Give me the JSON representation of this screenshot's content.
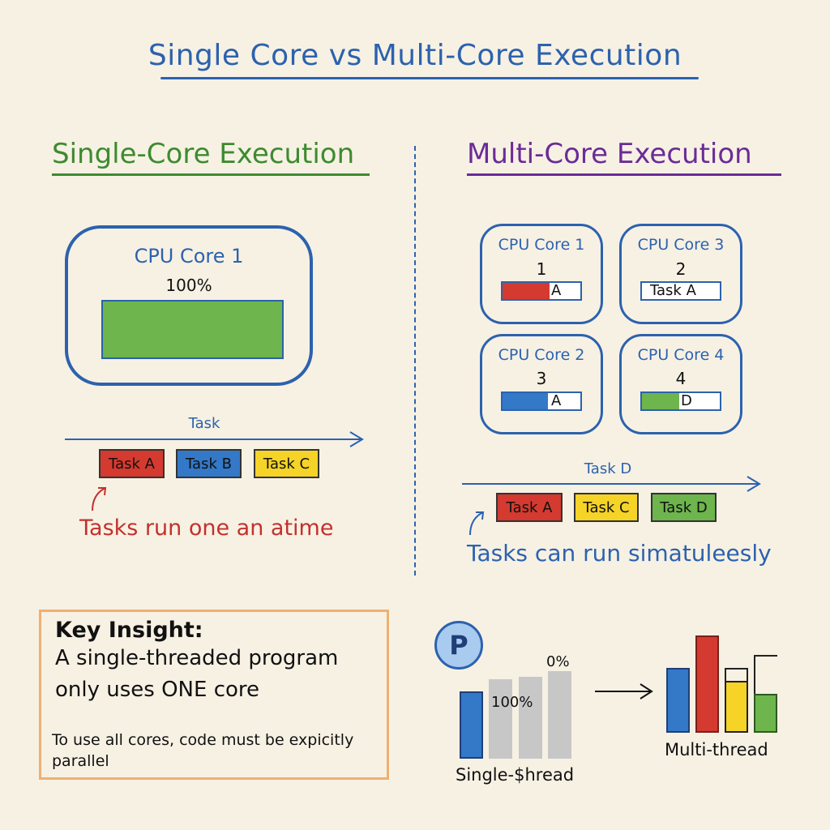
{
  "title": "Single Core vs Multi-Core Execution",
  "single": {
    "heading": "Single-Core Execution",
    "core_title": "CPU Core 1",
    "core_usage": "100%",
    "timeline_label": "Task",
    "tasks": [
      "Task A",
      "Task B",
      "Task C"
    ],
    "note": "Tasks run one an atime"
  },
  "multi": {
    "heading": "Multi-Core Execution",
    "cores": [
      {
        "title": "CPU Core 1",
        "num": "1",
        "bar_text": "A"
      },
      {
        "title": "CPU Core 3",
        "num": "2",
        "bar_text": "Task A"
      },
      {
        "title": "CPU Core 2",
        "num": "3",
        "bar_text": "A"
      },
      {
        "title": "CPU Core 4",
        "num": "4",
        "bar_text": "D"
      }
    ],
    "timeline_label": "Task D",
    "tasks": [
      "Task A",
      "Task C",
      "Task D"
    ],
    "note": "Tasks can run simatuleesly"
  },
  "insight": {
    "heading": "Key Insight:",
    "line1": "A single-threaded program",
    "line2": "only uses ONE core",
    "small1": "To use all cores, code must be expicitly",
    "small2": "parallel"
  },
  "bars": {
    "badge": "P",
    "label_100": "100%",
    "label_0": "0%",
    "single_caption": "Single-$hread",
    "multi_caption": "Multi-thread"
  },
  "colors": {
    "blue": "#2c62ae",
    "green": "#6db54c",
    "red": "#d43a2f",
    "yellow": "#f5d327",
    "purple": "#6a2c97",
    "orange": "#f0b070"
  }
}
